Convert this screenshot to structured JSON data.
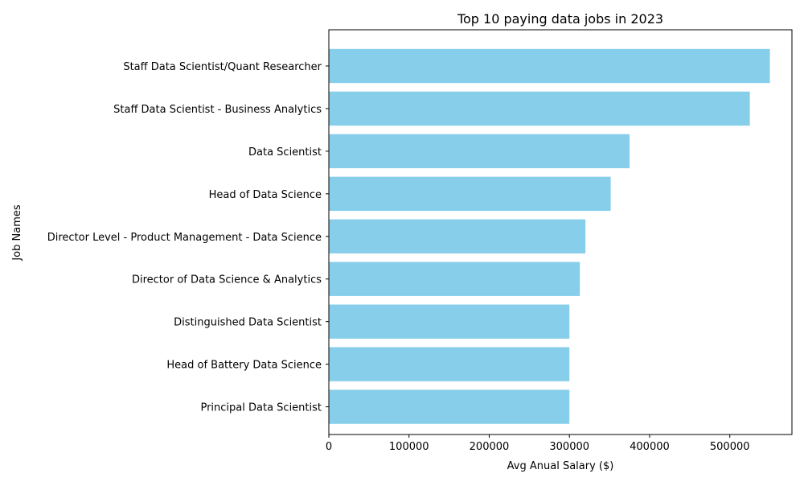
{
  "chart_data": {
    "type": "bar",
    "orientation": "horizontal",
    "title": "Top 10 paying data jobs in 2023",
    "xlabel": "Avg Anual Salary ($)",
    "ylabel": "Job Names",
    "categories": [
      "Staff Data Scientist/Quant Researcher",
      "Staff Data Scientist - Business Analytics",
      "Data Scientist",
      "Head of Data Science",
      "Director Level - Product Management - Data Science",
      "Director of Data Science & Analytics",
      "Distinguished Data Scientist",
      "Head of Battery Data Science",
      "Principal Data Scientist"
    ],
    "values": [
      550000,
      525000,
      375000,
      351500,
      320000,
      313000,
      300000,
      300000,
      300000
    ],
    "xlim": [
      0,
      577500
    ],
    "xticks": [
      0,
      100000,
      200000,
      300000,
      400000,
      500000
    ],
    "xtick_labels": [
      "0",
      "100000",
      "200000",
      "300000",
      "400000",
      "500000"
    ],
    "bar_color": "#87ceeb",
    "grid": false,
    "legend": false
  }
}
